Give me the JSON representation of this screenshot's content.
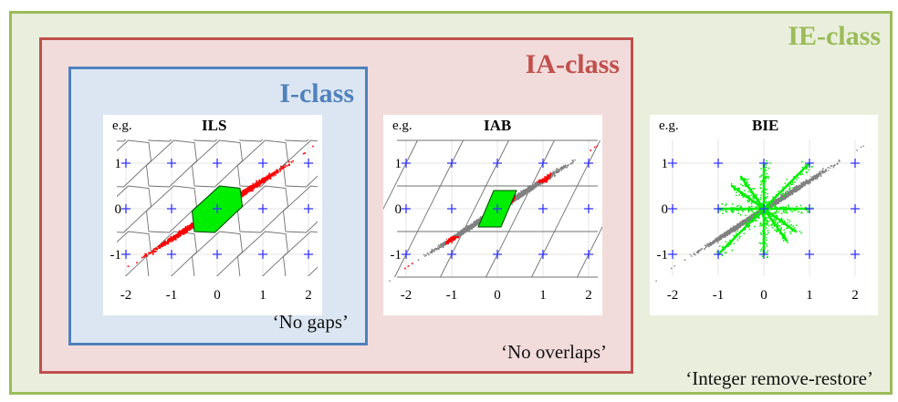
{
  "classes": {
    "ie": {
      "title": "IE-class",
      "note": "‘Integer remove-restore’",
      "color": "#9bbb59"
    },
    "ia": {
      "title": "IA-class",
      "note": "‘No overlaps’",
      "color": "#c0504d"
    },
    "i": {
      "title": "I-class",
      "note": "‘No gaps’",
      "color": "#4f81bd"
    }
  },
  "plots": [
    {
      "id": "ils",
      "eg": "e.g.",
      "title": "ILS"
    },
    {
      "id": "iab",
      "eg": "e.g.",
      "title": "IAB"
    },
    {
      "id": "bie",
      "eg": "e.g.",
      "title": "BIE"
    }
  ],
  "axis": {
    "x_ticks": [
      -2,
      -1,
      0,
      1,
      2
    ],
    "y_ticks": [
      1,
      0,
      -1
    ],
    "x_tick_labels": [
      "-2",
      "-1",
      "0",
      "1",
      "2"
    ],
    "y_tick_labels": [
      "1",
      "0",
      "-1"
    ]
  },
  "colors": {
    "pull_in_region": "#00ee00",
    "samples_in_region": "#ff0000",
    "samples_outside": "#808080",
    "grid_points": "#3333ff",
    "cell_borders": "#707070"
  }
}
